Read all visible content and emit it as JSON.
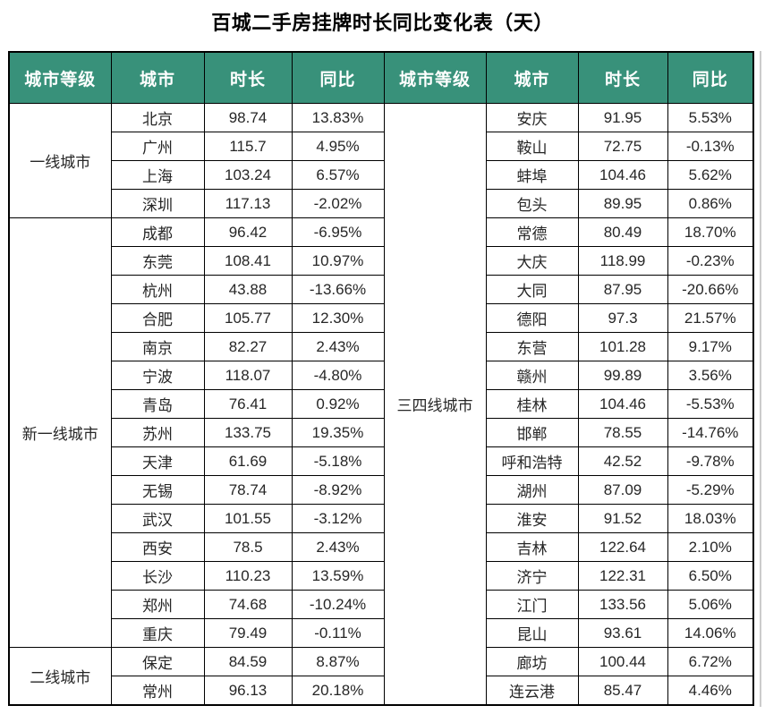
{
  "title": "百城二手房挂牌时长同比变化表（天）",
  "headers": [
    "城市等级",
    "城市",
    "时长",
    "同比",
    "城市等级",
    "城市",
    "时长",
    "同比"
  ],
  "colors": {
    "header_bg": "#38917A",
    "header_text": "#FFFFFF",
    "body_text": "#262626",
    "border": "#000000",
    "title_text": "#000000"
  },
  "chart_data": {
    "type": "table",
    "title": "百城二手房挂牌时长同比变化表（天）",
    "columns": [
      "城市等级",
      "城市",
      "时长",
      "同比"
    ],
    "left_groups": [
      {
        "tier": "一线城市",
        "rows": [
          [
            "北京",
            "98.74",
            "13.83%"
          ],
          [
            "广州",
            "115.7",
            "4.95%"
          ],
          [
            "上海",
            "103.24",
            "6.57%"
          ],
          [
            "深圳",
            "117.13",
            "-2.02%"
          ]
        ]
      },
      {
        "tier": "新一线城市",
        "rows": [
          [
            "成都",
            "96.42",
            "-6.95%"
          ],
          [
            "东莞",
            "108.41",
            "10.97%"
          ],
          [
            "杭州",
            "43.88",
            "-13.66%"
          ],
          [
            "合肥",
            "105.77",
            "12.30%"
          ],
          [
            "南京",
            "82.27",
            "2.43%"
          ],
          [
            "宁波",
            "118.07",
            "-4.80%"
          ],
          [
            "青岛",
            "76.41",
            "0.92%"
          ],
          [
            "苏州",
            "133.75",
            "19.35%"
          ],
          [
            "天津",
            "61.69",
            "-5.18%"
          ],
          [
            "无锡",
            "78.74",
            "-8.92%"
          ],
          [
            "武汉",
            "101.55",
            "-3.12%"
          ],
          [
            "西安",
            "78.5",
            "2.43%"
          ],
          [
            "长沙",
            "110.23",
            "13.59%"
          ],
          [
            "郑州",
            "74.68",
            "-10.24%"
          ],
          [
            "重庆",
            "79.49",
            "-0.11%"
          ]
        ]
      },
      {
        "tier": "二线城市",
        "rows": [
          [
            "保定",
            "84.59",
            "8.87%"
          ],
          [
            "常州",
            "96.13",
            "20.18%"
          ]
        ]
      }
    ],
    "right_groups": [
      {
        "tier": "三四线城市",
        "rows": [
          [
            "安庆",
            "91.95",
            "5.53%"
          ],
          [
            "鞍山",
            "72.75",
            "-0.13%"
          ],
          [
            "蚌埠",
            "104.46",
            "5.62%"
          ],
          [
            "包头",
            "89.95",
            "0.86%"
          ],
          [
            "常德",
            "80.49",
            "18.70%"
          ],
          [
            "大庆",
            "118.99",
            "-0.23%"
          ],
          [
            "大同",
            "87.95",
            "-20.66%"
          ],
          [
            "德阳",
            "97.3",
            "21.57%"
          ],
          [
            "东营",
            "101.28",
            "9.17%"
          ],
          [
            "赣州",
            "99.89",
            "3.56%"
          ],
          [
            "桂林",
            "104.46",
            "-5.53%"
          ],
          [
            "邯郸",
            "78.55",
            "-14.76%"
          ],
          [
            "呼和浩特",
            "42.52",
            "-9.78%"
          ],
          [
            "湖州",
            "87.09",
            "-5.29%"
          ],
          [
            "淮安",
            "91.52",
            "18.03%"
          ],
          [
            "吉林",
            "122.64",
            "2.10%"
          ],
          [
            "济宁",
            "122.31",
            "6.50%"
          ],
          [
            "江门",
            "133.56",
            "5.06%"
          ],
          [
            "昆山",
            "93.61",
            "14.06%"
          ],
          [
            "廊坊",
            "100.44",
            "6.72%"
          ],
          [
            "连云港",
            "85.47",
            "4.46%"
          ]
        ]
      }
    ]
  }
}
